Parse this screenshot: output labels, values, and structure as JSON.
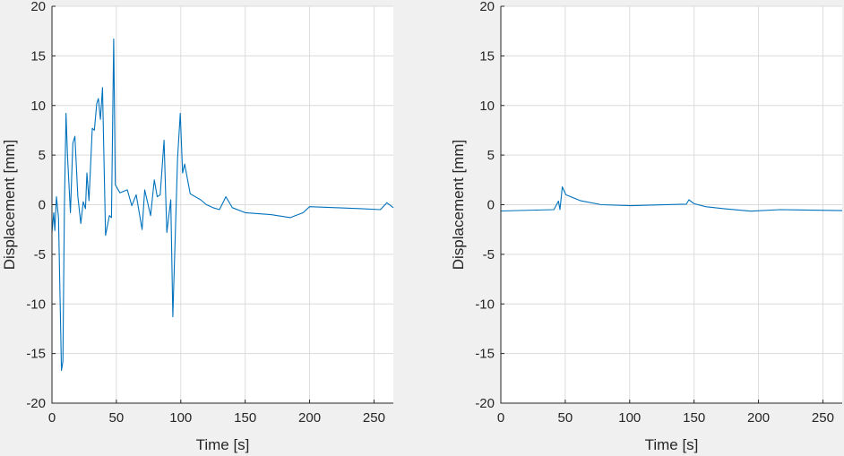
{
  "chart_data": [
    {
      "type": "line",
      "xlabel": "Time [s]",
      "ylabel": "Displacement [mm]",
      "xlim": [
        0,
        265
      ],
      "ylim": [
        -20,
        20
      ],
      "xticks": [
        0,
        50,
        100,
        150,
        200,
        250
      ],
      "yticks": [
        -20,
        -15,
        -10,
        -5,
        0,
        5,
        10,
        15,
        20
      ],
      "grid": true,
      "color": "#0072bd",
      "series": [
        {
          "x": [
            0,
            1.4,
            2.2,
            3.5,
            5.1,
            7.4,
            8.5,
            9.7,
            10.9,
            12,
            14.3,
            16.2,
            17.8,
            20.1,
            22.4,
            24.3,
            26,
            27.1,
            28.7,
            31.3,
            32.9,
            34.8,
            36,
            37.6,
            39.2,
            41.6,
            44.6,
            46.2,
            47.9,
            49.2,
            52.7,
            58.5,
            62,
            65.4,
            70,
            72,
            76.6,
            79.4,
            81.7,
            84,
            87,
            89.2,
            92.2,
            93.8,
            97.5,
            99.6,
            101.4,
            103,
            107.3,
            115.4,
            120,
            125,
            130,
            135,
            140,
            150,
            170,
            185,
            195,
            200,
            220,
            240,
            255,
            260,
            265
          ],
          "y": [
            -2.8,
            -0.8,
            -2.6,
            0.8,
            -1.3,
            -16.7,
            -15.8,
            -0.1,
            9.2,
            5.0,
            -0.8,
            6.2,
            6.9,
            0.8,
            -1.9,
            0.3,
            -0.4,
            3.2,
            0.4,
            7.7,
            7.5,
            10.2,
            10.7,
            8.6,
            11.8,
            -3.1,
            -1.1,
            -1.3,
            16.7,
            2.0,
            1.2,
            1.5,
            -0.1,
            1.0,
            -2.5,
            1.5,
            -1.1,
            2.5,
            0.8,
            1.0,
            6.5,
            -2.8,
            0.5,
            -11.3,
            4.7,
            9.2,
            3.2,
            4.1,
            1.1,
            0.5,
            0,
            -0.3,
            -0.5,
            0.8,
            -0.3,
            -0.8,
            -1.0,
            -1.3,
            -0.8,
            -0.2,
            -0.3,
            -0.4,
            -0.5,
            0.2,
            -0.3
          ]
        }
      ]
    },
    {
      "type": "line",
      "xlabel": "Time [s]",
      "ylabel": "Displacement [mm]",
      "xlim": [
        0,
        265
      ],
      "ylim": [
        -20,
        20
      ],
      "xticks": [
        0,
        50,
        100,
        150,
        200,
        250
      ],
      "yticks": [
        -20,
        -15,
        -10,
        -5,
        0,
        5,
        10,
        15,
        20
      ],
      "grid": true,
      "color": "#0072bd",
      "series": [
        {
          "x": [
            0,
            41.2,
            44.7,
            45.9,
            47.7,
            50.5,
            62,
            78,
            101,
            144,
            146,
            150,
            159,
            173,
            194,
            217,
            265
          ],
          "y": [
            -0.63,
            -0.5,
            0.36,
            -0.5,
            1.8,
            1.0,
            0.4,
            0,
            -0.1,
            0.05,
            0.5,
            0.1,
            -0.2,
            -0.4,
            -0.65,
            -0.5,
            -0.6
          ]
        }
      ]
    }
  ]
}
